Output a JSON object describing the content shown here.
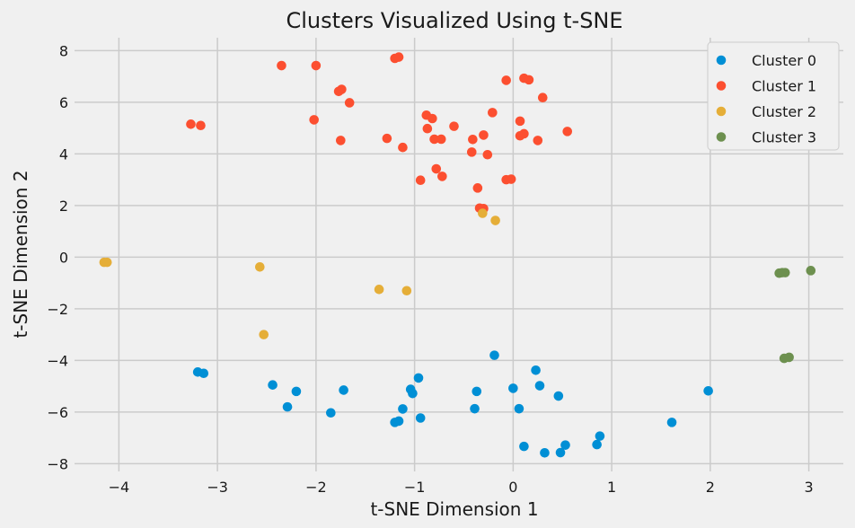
{
  "chart_data": {
    "type": "scatter",
    "title": "Clusters Visualized Using t-SNE",
    "xlabel": "t-SNE Dimension 1",
    "ylabel": "t-SNE Dimension 2",
    "xlim": [
      -4.45,
      3.35
    ],
    "ylim": [
      -8.3,
      8.5
    ],
    "xticks": [
      -4,
      -3,
      -2,
      -1,
      0,
      1,
      2,
      3
    ],
    "yticks": [
      -8,
      -6,
      -4,
      -2,
      0,
      2,
      4,
      6,
      8
    ],
    "xtick_labels": [
      "−4",
      "−3",
      "−2",
      "−1",
      "0",
      "1",
      "2",
      "3"
    ],
    "ytick_labels": [
      "−8",
      "−6",
      "−4",
      "−2",
      "0",
      "2",
      "4",
      "6",
      "8"
    ],
    "grid": true,
    "legend_position": "top-right",
    "series": [
      {
        "name": "Cluster 0",
        "color": "#008fd5",
        "points": [
          [
            -3.2,
            -4.45
          ],
          [
            -3.14,
            -4.5
          ],
          [
            -2.44,
            -4.95
          ],
          [
            -2.2,
            -5.2
          ],
          [
            -2.29,
            -5.8
          ],
          [
            -1.72,
            -5.15
          ],
          [
            -1.85,
            -6.03
          ],
          [
            -1.04,
            -5.12
          ],
          [
            -1.02,
            -5.28
          ],
          [
            -0.96,
            -4.68
          ],
          [
            -1.12,
            -5.88
          ],
          [
            -1.2,
            -6.4
          ],
          [
            -1.16,
            -6.35
          ],
          [
            -0.94,
            -6.23
          ],
          [
            -0.39,
            -5.87
          ],
          [
            -0.37,
            -5.2
          ],
          [
            -0.19,
            -3.8
          ],
          [
            0.0,
            -5.08
          ],
          [
            0.06,
            -5.87
          ],
          [
            0.23,
            -4.38
          ],
          [
            0.27,
            -4.98
          ],
          [
            0.46,
            -5.38
          ],
          [
            0.11,
            -7.33
          ],
          [
            0.32,
            -7.58
          ],
          [
            0.48,
            -7.57
          ],
          [
            0.53,
            -7.28
          ],
          [
            0.85,
            -7.26
          ],
          [
            0.88,
            -6.93
          ],
          [
            1.61,
            -6.4
          ],
          [
            1.98,
            -5.18
          ]
        ]
      },
      {
        "name": "Cluster 1",
        "color": "#fc4f30",
        "points": [
          [
            -3.27,
            5.15
          ],
          [
            -3.17,
            5.1
          ],
          [
            -2.35,
            7.42
          ],
          [
            -2.0,
            7.42
          ],
          [
            -2.02,
            5.32
          ],
          [
            -1.77,
            6.42
          ],
          [
            -1.74,
            6.5
          ],
          [
            -1.75,
            4.52
          ],
          [
            -1.66,
            5.98
          ],
          [
            -1.2,
            7.7
          ],
          [
            -1.16,
            7.75
          ],
          [
            -1.28,
            4.6
          ],
          [
            -1.12,
            4.25
          ],
          [
            -0.94,
            2.98
          ],
          [
            -0.88,
            5.5
          ],
          [
            -0.87,
            4.98
          ],
          [
            -0.82,
            5.37
          ],
          [
            -0.8,
            4.57
          ],
          [
            -0.78,
            3.42
          ],
          [
            -0.73,
            4.57
          ],
          [
            -0.72,
            3.13
          ],
          [
            -0.6,
            5.07
          ],
          [
            -0.42,
            4.07
          ],
          [
            -0.41,
            4.56
          ],
          [
            -0.36,
            2.68
          ],
          [
            -0.34,
            1.9
          ],
          [
            -0.3,
            1.88
          ],
          [
            -0.3,
            4.73
          ],
          [
            -0.26,
            3.97
          ],
          [
            -0.21,
            5.6
          ],
          [
            -0.07,
            6.85
          ],
          [
            -0.07,
            3.0
          ],
          [
            -0.02,
            3.02
          ],
          [
            0.07,
            5.27
          ],
          [
            0.07,
            4.7
          ],
          [
            0.11,
            4.78
          ],
          [
            0.11,
            6.93
          ],
          [
            0.16,
            6.87
          ],
          [
            0.25,
            4.52
          ],
          [
            0.3,
            6.18
          ],
          [
            0.55,
            4.87
          ]
        ]
      },
      {
        "name": "Cluster 2",
        "color": "#e5ae38",
        "points": [
          [
            -4.15,
            -0.2
          ],
          [
            -4.12,
            -0.2
          ],
          [
            -2.57,
            -0.38
          ],
          [
            -2.53,
            -3.0
          ],
          [
            -1.36,
            -1.25
          ],
          [
            -1.08,
            -1.3
          ],
          [
            -0.31,
            1.7
          ],
          [
            -0.18,
            1.42
          ]
        ]
      },
      {
        "name": "Cluster 3",
        "color": "#6d904f",
        "points": [
          [
            2.7,
            -0.62
          ],
          [
            2.73,
            -0.6
          ],
          [
            2.76,
            -0.6
          ],
          [
            3.02,
            -0.52
          ],
          [
            2.75,
            -3.92
          ],
          [
            2.8,
            -3.88
          ]
        ]
      }
    ]
  }
}
